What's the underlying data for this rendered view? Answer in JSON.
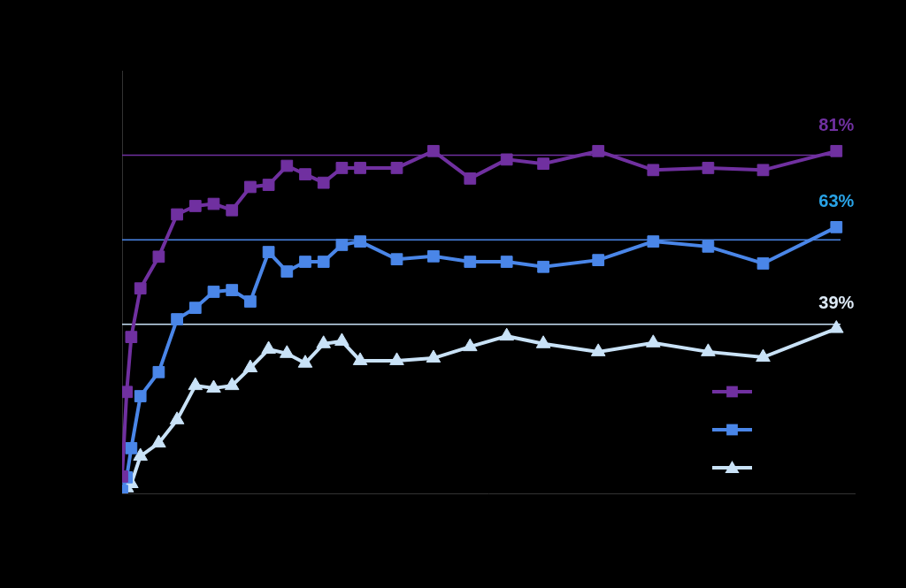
{
  "chart_data": {
    "type": "line",
    "x": [
      0,
      0.25,
      0.5,
      1,
      2,
      3,
      4,
      5,
      6,
      7,
      8,
      9,
      10,
      11,
      12,
      13,
      15,
      17,
      19,
      21,
      23,
      26,
      29,
      32,
      35,
      39
    ],
    "xlim": [
      0,
      40
    ],
    "ylim": [
      0,
      100
    ],
    "grid": false,
    "tick_labels": false,
    "legend": "right",
    "series": [
      {
        "color": "#7030a0",
        "marker": "square",
        "values": [
          4,
          24,
          37,
          48.5,
          56,
          66,
          68,
          68.5,
          67,
          72.5,
          73,
          77.5,
          75.5,
          73.5,
          77,
          77,
          77,
          81,
          74.5,
          79,
          78,
          81,
          76.5,
          77,
          76.5,
          81
        ]
      },
      {
        "color": "#4a86e8",
        "marker": "square",
        "values": [
          0.6,
          3.8,
          10.7,
          23,
          28.7,
          41.2,
          43.9,
          47.7,
          48.1,
          45.4,
          57.1,
          52.5,
          54.8,
          54.8,
          58.8,
          59.6,
          55.4,
          56.1,
          54.8,
          54.8,
          53.6,
          55.2,
          59.6,
          58.4,
          54.4,
          63
        ]
      },
      {
        "color": "#c9e2f7",
        "marker": "triangle",
        "values": [
          0,
          1.3,
          2.3,
          8.8,
          11.9,
          17.4,
          25.5,
          24.9,
          25.5,
          29.7,
          34.1,
          33.1,
          30.8,
          35.4,
          36,
          31.4,
          31.4,
          32,
          34.7,
          37.2,
          35.4,
          33.5,
          35.6,
          33.5,
          32.2,
          39
        ]
      }
    ],
    "hlines": [
      {
        "value": 80,
        "color": "#7030a0"
      },
      {
        "value": 60,
        "color": "#4a86e8"
      },
      {
        "value": 40,
        "color": "#c9e2f7"
      }
    ],
    "annotations": [
      {
        "text": "81%",
        "x": 39,
        "y": 81,
        "color": "#7030a0"
      },
      {
        "text": "63%",
        "x": 39,
        "y": 63,
        "color": "#29a3e6"
      },
      {
        "text": "39%",
        "x": 39,
        "y": 39,
        "color": "#dde9f5"
      }
    ]
  }
}
